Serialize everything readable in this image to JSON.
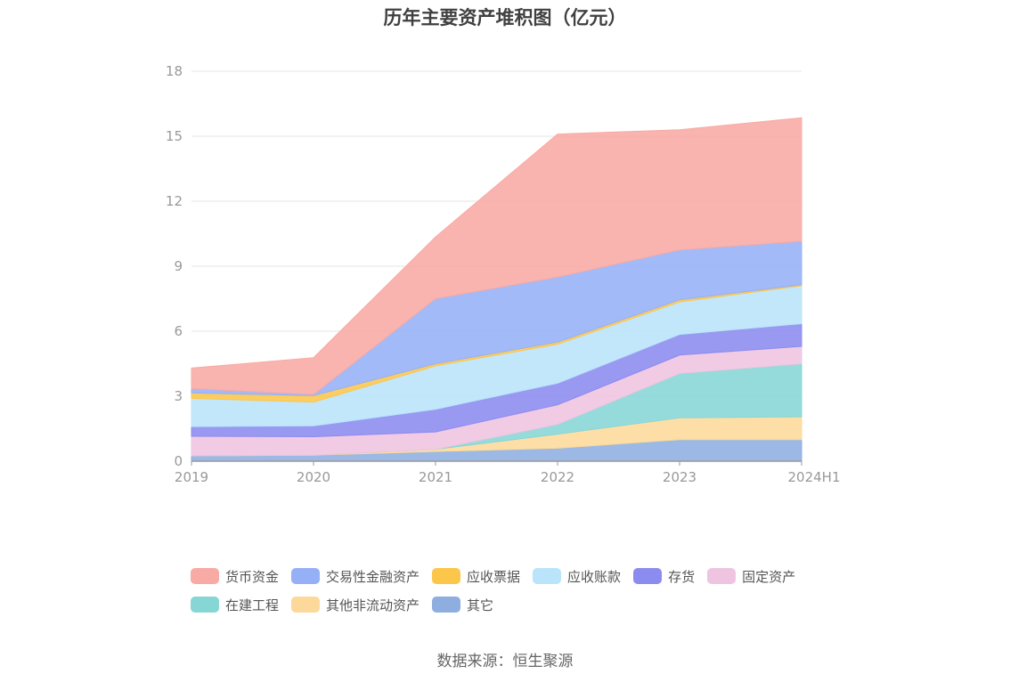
{
  "chart_data": {
    "type": "area",
    "stacked": true,
    "title": "历年主要资产堆积图（亿元）",
    "categories": [
      "2019",
      "2020",
      "2021",
      "2022",
      "2023",
      "2024H1"
    ],
    "yticks": [
      "0",
      "3",
      "6",
      "9",
      "12",
      "15",
      "18"
    ],
    "ylim": [
      0,
      18
    ],
    "grid": true,
    "legend_position": "bottom",
    "series": [
      {
        "name": "其它",
        "color": "#8eaee0",
        "values": [
          0.25,
          0.28,
          0.45,
          0.6,
          1.0,
          1.0
        ]
      },
      {
        "name": "其他非流动资产",
        "color": "#fcd99a",
        "values": [
          0.0,
          0.0,
          0.1,
          0.65,
          1.0,
          1.05
        ]
      },
      {
        "name": "在建工程",
        "color": "#87d6d6",
        "values": [
          0.0,
          0.0,
          0.0,
          0.45,
          2.05,
          2.45
        ]
      },
      {
        "name": "固定资产",
        "color": "#efc4e0",
        "values": [
          0.9,
          0.85,
          0.8,
          0.9,
          0.85,
          0.8
        ]
      },
      {
        "name": "存货",
        "color": "#8b8bf0",
        "values": [
          0.45,
          0.5,
          1.05,
          1.0,
          0.95,
          1.05
        ]
      },
      {
        "name": "应收账款",
        "color": "#b9e4fa",
        "values": [
          1.3,
          1.1,
          2.0,
          1.8,
          1.5,
          1.75
        ]
      },
      {
        "name": "应收票据",
        "color": "#fcc64a",
        "values": [
          0.25,
          0.3,
          0.1,
          0.1,
          0.1,
          0.05
        ]
      },
      {
        "name": "交易性金融资产",
        "color": "#96b0f8",
        "values": [
          0.2,
          0.05,
          3.0,
          3.0,
          2.3,
          2.0
        ]
      },
      {
        "name": "货币资金",
        "color": "#f8aaa4",
        "values": [
          0.95,
          1.7,
          2.85,
          6.6,
          5.55,
          5.7
        ]
      }
    ]
  },
  "legend": {
    "row1": [
      "货币资金",
      "交易性金融资产",
      "应收票据",
      "应收账款",
      "存货",
      "固定资产"
    ],
    "row2": [
      "在建工程",
      "其他非流动资产",
      "其它"
    ]
  },
  "source": "数据来源：恒生聚源"
}
